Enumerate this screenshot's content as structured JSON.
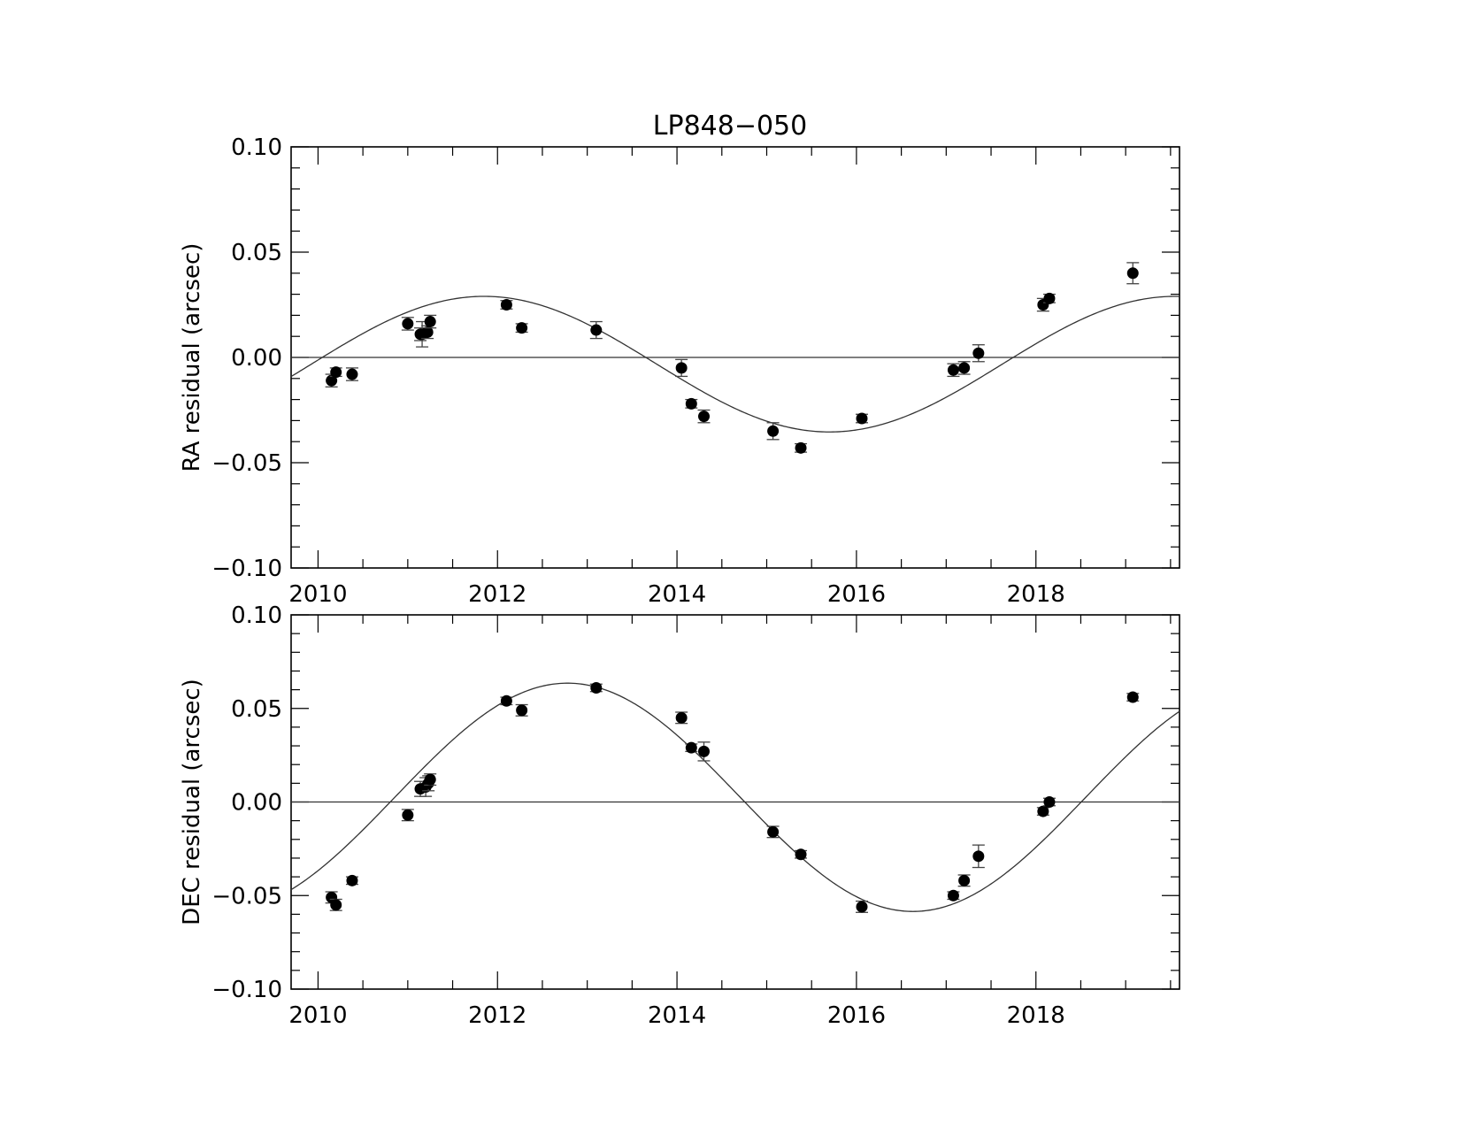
{
  "title": "LP848−050",
  "chart_data": [
    {
      "type": "scatter",
      "panel": "top",
      "ylabel": "RA residual (arcsec)",
      "xlabel": "",
      "xlim": [
        2009.7,
        2019.6
      ],
      "ylim": [
        -0.1,
        0.1
      ],
      "yticks": [
        0.1,
        0.05,
        0.0,
        -0.05,
        -0.1
      ],
      "ytick_labels": [
        "0.10",
        "0.05",
        "0.00",
        "−0.05",
        "−0.10"
      ],
      "xticks": [
        2010,
        2012,
        2014,
        2016,
        2018
      ],
      "xtick_labels": [
        "2010",
        "2012",
        "2014",
        "2016",
        "2018"
      ],
      "zero_line": true,
      "fit_curve": {
        "model": "sinusoid",
        "amplitude": 0.0322,
        "offset": -0.0032,
        "period_years": 7.7,
        "peak_year": 2011.85
      },
      "points": [
        {
          "x": 2010.15,
          "y": -0.011,
          "err": 0.003
        },
        {
          "x": 2010.2,
          "y": -0.007,
          "err": 0.002
        },
        {
          "x": 2010.38,
          "y": -0.008,
          "err": 0.003
        },
        {
          "x": 2011.0,
          "y": 0.016,
          "err": 0.003
        },
        {
          "x": 2011.14,
          "y": 0.011,
          "err": 0.003
        },
        {
          "x": 2011.16,
          "y": 0.011,
          "err": 0.006
        },
        {
          "x": 2011.22,
          "y": 0.012,
          "err": 0.003
        },
        {
          "x": 2011.25,
          "y": 0.017,
          "err": 0.003
        },
        {
          "x": 2012.1,
          "y": 0.025,
          "err": 0.002
        },
        {
          "x": 2012.27,
          "y": 0.014,
          "err": 0.002
        },
        {
          "x": 2013.1,
          "y": 0.013,
          "err": 0.004
        },
        {
          "x": 2014.05,
          "y": -0.005,
          "err": 0.004
        },
        {
          "x": 2014.16,
          "y": -0.022,
          "err": 0.002
        },
        {
          "x": 2014.3,
          "y": -0.028,
          "err": 0.003
        },
        {
          "x": 2015.07,
          "y": -0.035,
          "err": 0.004
        },
        {
          "x": 2015.38,
          "y": -0.043,
          "err": 0.002
        },
        {
          "x": 2016.06,
          "y": -0.029,
          "err": 0.002
        },
        {
          "x": 2017.08,
          "y": -0.006,
          "err": 0.003
        },
        {
          "x": 2017.2,
          "y": -0.005,
          "err": 0.003
        },
        {
          "x": 2017.36,
          "y": 0.002,
          "err": 0.004
        },
        {
          "x": 2018.08,
          "y": 0.025,
          "err": 0.003
        },
        {
          "x": 2018.15,
          "y": 0.028,
          "err": 0.002
        },
        {
          "x": 2019.08,
          "y": 0.04,
          "err": 0.005
        }
      ]
    },
    {
      "type": "scatter",
      "panel": "bottom",
      "ylabel": "DEC residual (arcsec)",
      "xlabel": "",
      "xlim": [
        2009.7,
        2019.6
      ],
      "ylim": [
        -0.1,
        0.1
      ],
      "yticks": [
        0.1,
        0.05,
        0.0,
        -0.05,
        -0.1
      ],
      "ytick_labels": [
        "0.10",
        "0.05",
        "0.00",
        "−0.05",
        "−0.10"
      ],
      "xticks": [
        2010,
        2012,
        2014,
        2016,
        2018
      ],
      "xtick_labels": [
        "2010",
        "2012",
        "2014",
        "2016",
        "2018"
      ],
      "zero_line": true,
      "fit_curve": {
        "model": "sinusoid",
        "amplitude": 0.061,
        "offset": 0.0025,
        "period_years": 7.7,
        "peak_year": 2012.78
      },
      "points": [
        {
          "x": 2010.15,
          "y": -0.051,
          "err": 0.003
        },
        {
          "x": 2010.2,
          "y": -0.055,
          "err": 0.003
        },
        {
          "x": 2010.38,
          "y": -0.042,
          "err": 0.002
        },
        {
          "x": 2011.0,
          "y": -0.007,
          "err": 0.003
        },
        {
          "x": 2011.14,
          "y": 0.007,
          "err": 0.004
        },
        {
          "x": 2011.2,
          "y": 0.008,
          "err": 0.005
        },
        {
          "x": 2011.23,
          "y": 0.01,
          "err": 0.004
        },
        {
          "x": 2011.25,
          "y": 0.012,
          "err": 0.003
        },
        {
          "x": 2012.1,
          "y": 0.054,
          "err": 0.002
        },
        {
          "x": 2012.27,
          "y": 0.049,
          "err": 0.003
        },
        {
          "x": 2013.1,
          "y": 0.061,
          "err": 0.002
        },
        {
          "x": 2014.05,
          "y": 0.045,
          "err": 0.003
        },
        {
          "x": 2014.16,
          "y": 0.029,
          "err": 0.002
        },
        {
          "x": 2014.3,
          "y": 0.027,
          "err": 0.005
        },
        {
          "x": 2015.07,
          "y": -0.016,
          "err": 0.003
        },
        {
          "x": 2015.38,
          "y": -0.028,
          "err": 0.002
        },
        {
          "x": 2016.06,
          "y": -0.056,
          "err": 0.003
        },
        {
          "x": 2017.08,
          "y": -0.05,
          "err": 0.002
        },
        {
          "x": 2017.2,
          "y": -0.042,
          "err": 0.003
        },
        {
          "x": 2017.36,
          "y": -0.029,
          "err": 0.006
        },
        {
          "x": 2018.08,
          "y": -0.005,
          "err": 0.002
        },
        {
          "x": 2018.15,
          "y": 0.0,
          "err": 0.002
        },
        {
          "x": 2019.08,
          "y": 0.056,
          "err": 0.002
        }
      ]
    }
  ]
}
